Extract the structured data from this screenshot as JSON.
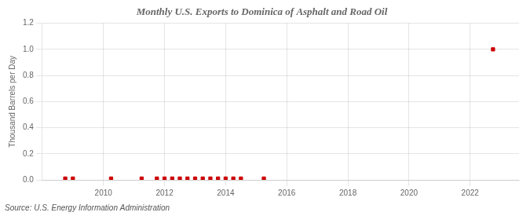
{
  "chart_data": {
    "type": "scatter",
    "title": "Monthly U.S. Exports to Dominica of Asphalt and Road Oil",
    "ylabel": "Thousand Barrels per Day",
    "annotation": "Source: U.S. Energy Information Administration",
    "x": [
      2008.75,
      2009.0,
      2010.25,
      2011.25,
      2011.75,
      2012.0,
      2012.25,
      2012.5,
      2012.75,
      2013.0,
      2013.25,
      2013.5,
      2013.75,
      2014.0,
      2014.25,
      2014.5,
      2015.25,
      2022.75
    ],
    "values": [
      0.01,
      0.01,
      0.01,
      0.01,
      0.01,
      0.01,
      0.01,
      0.01,
      0.01,
      0.01,
      0.01,
      0.01,
      0.01,
      0.01,
      0.01,
      0.01,
      0.01,
      1.0
    ],
    "color": "#cc0000",
    "marker": "square",
    "xlim": [
      2008.0,
      2023.6
    ],
    "xticks": [
      2010,
      2012,
      2014,
      2016,
      2018,
      2020,
      2022
    ],
    "ylim": [
      0.0,
      1.2
    ],
    "yticks": [
      {
        "value": 0,
        "label": "0.0"
      },
      0.2,
      0.4,
      0.6,
      0.8,
      {
        "value": 1,
        "label": "1.0"
      },
      1.2
    ],
    "grid": true
  }
}
